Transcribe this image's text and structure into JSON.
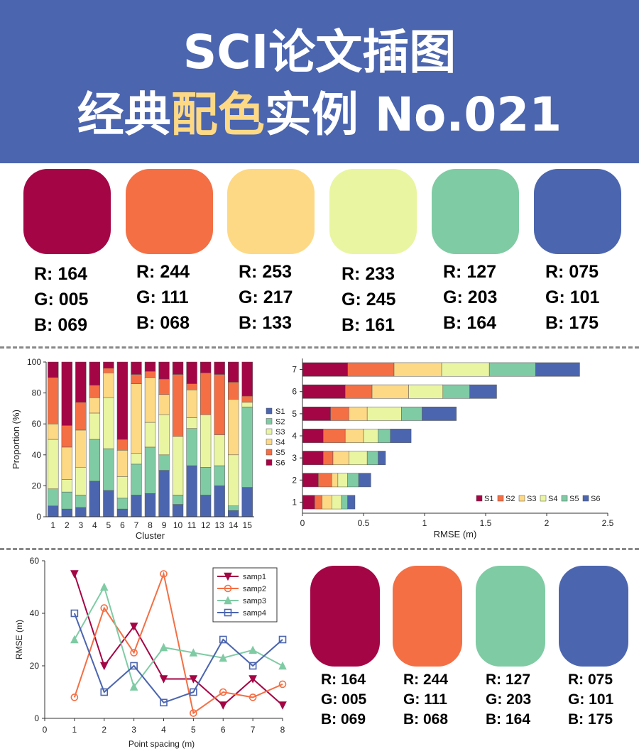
{
  "header": {
    "line1": "SCI论文插图",
    "line2_pre": "经典",
    "line2_highlight": "配色",
    "line2_post": "实例 No.021",
    "bg_color": "#4b65af",
    "highlight_color": "#fdd985"
  },
  "palette_top": [
    {
      "r": "R: 164",
      "g": "G: 005",
      "b": "B: 069",
      "hex": "#a40545"
    },
    {
      "r": "R: 244",
      "g": "G: 111",
      "b": "B: 068",
      "hex": "#f46f44"
    },
    {
      "r": "R: 253",
      "g": "G: 217",
      "b": "B: 133",
      "hex": "#fdd985"
    },
    {
      "r": "R: 233",
      "g": "G: 245",
      "b": "B: 161",
      "hex": "#e9f5a1"
    },
    {
      "r": "R: 127",
      "g": "G: 203",
      "b": "B: 164",
      "hex": "#7fcba4"
    },
    {
      "r": "R: 075",
      "g": "G: 101",
      "b": "B: 175",
      "hex": "#4b65af"
    }
  ],
  "palette_bottom": [
    {
      "r": "R: 164",
      "g": "G: 005",
      "b": "B: 069",
      "hex": "#a40545"
    },
    {
      "r": "R: 244",
      "g": "G: 111",
      "b": "B: 068",
      "hex": "#f46f44"
    },
    {
      "r": "R: 127",
      "g": "G: 203",
      "b": "B: 164",
      "hex": "#7fcba4"
    },
    {
      "r": "R: 075",
      "g": "G: 101",
      "b": "B: 175",
      "hex": "#4b65af"
    }
  ],
  "chart_data": [
    {
      "type": "bar",
      "stacked": true,
      "xlabel": "Cluster",
      "ylabel": "Proportion (%)",
      "ylim": [
        0,
        100
      ],
      "yticks": [
        0,
        20,
        40,
        60,
        80,
        100
      ],
      "categories": [
        "1",
        "2",
        "3",
        "4",
        "5",
        "6",
        "7",
        "8",
        "9",
        "10",
        "11",
        "12",
        "13",
        "14",
        "15"
      ],
      "legend_position": "right",
      "series": [
        {
          "name": "S1",
          "color": "#4b65af",
          "values": [
            7,
            5,
            6,
            23,
            17,
            5,
            14,
            15,
            30,
            8,
            33,
            14,
            20,
            4,
            19
          ]
        },
        {
          "name": "S2",
          "color": "#7fcba4",
          "values": [
            11,
            11,
            8,
            27,
            27,
            7,
            20,
            30,
            10,
            6,
            24,
            18,
            13,
            3,
            52
          ]
        },
        {
          "name": "S3",
          "color": "#e9f5a1",
          "values": [
            32,
            8,
            18,
            17,
            33,
            14,
            7,
            16,
            26,
            38,
            7,
            34,
            20,
            33,
            3
          ]
        },
        {
          "name": "S4",
          "color": "#fdd985",
          "values": [
            10,
            21,
            24,
            10,
            16,
            17,
            45,
            29,
            13,
            0,
            18,
            0,
            0,
            36,
            0
          ]
        },
        {
          "name": "S5",
          "color": "#f46f44",
          "values": [
            30,
            14,
            18,
            8,
            3,
            7,
            6,
            4,
            10,
            40,
            4,
            27,
            39,
            11,
            4
          ]
        },
        {
          "name": "S6",
          "color": "#a40545",
          "values": [
            10,
            41,
            26,
            15,
            4,
            50,
            8,
            6,
            11,
            8,
            14,
            7,
            8,
            13,
            22
          ]
        }
      ]
    },
    {
      "type": "bar",
      "orientation": "horizontal",
      "stacked": true,
      "xlabel": "RMSE (m)",
      "ylabel": "",
      "xlim": [
        0,
        2.5
      ],
      "xticks": [
        0,
        0.5,
        1,
        1.5,
        2,
        2.5
      ],
      "xtick_labels": [
        "0",
        "0.5",
        "1",
        "1.5",
        "2",
        "2.5"
      ],
      "categories": [
        "1",
        "2",
        "3",
        "4",
        "5",
        "6",
        "7"
      ],
      "legend_position": "bottom-right",
      "series": [
        {
          "name": "S1",
          "color": "#a40545",
          "values": [
            0.1,
            0.13,
            0.17,
            0.17,
            0.23,
            0.35,
            0.37
          ]
        },
        {
          "name": "S2",
          "color": "#f46f44",
          "values": [
            0.06,
            0.11,
            0.08,
            0.18,
            0.15,
            0.22,
            0.38
          ]
        },
        {
          "name": "S3",
          "color": "#fdd985",
          "values": [
            0.08,
            0.05,
            0.13,
            0.15,
            0.15,
            0.3,
            0.39
          ]
        },
        {
          "name": "S4",
          "color": "#e9f5a1",
          "values": [
            0.08,
            0.08,
            0.15,
            0.12,
            0.28,
            0.28,
            0.39
          ]
        },
        {
          "name": "S5",
          "color": "#7fcba4",
          "values": [
            0.05,
            0.09,
            0.09,
            0.1,
            0.17,
            0.22,
            0.38
          ]
        },
        {
          "name": "S6",
          "color": "#4b65af",
          "values": [
            0.06,
            0.1,
            0.06,
            0.17,
            0.28,
            0.22,
            0.36
          ]
        }
      ]
    },
    {
      "type": "line",
      "xlabel": "Point spacing (m)",
      "ylabel": "RMSE (m)",
      "xlim": [
        0,
        8
      ],
      "ylim": [
        0,
        60
      ],
      "xticks": [
        0,
        1,
        2,
        3,
        4,
        5,
        6,
        7,
        8
      ],
      "yticks": [
        0,
        20,
        40,
        60
      ],
      "x": [
        1,
        2,
        3,
        4,
        5,
        6,
        7,
        8
      ],
      "legend_position": "top-right",
      "series": [
        {
          "name": "samp1",
          "color": "#a40545",
          "marker": "triangle-down",
          "values": [
            55,
            20,
            35,
            15,
            15,
            5,
            15,
            5
          ]
        },
        {
          "name": "samp2",
          "color": "#f46f44",
          "marker": "circle",
          "values": [
            8,
            42,
            25,
            55,
            2,
            10,
            8,
            13
          ]
        },
        {
          "name": "samp3",
          "color": "#7fcba4",
          "marker": "triangle-up",
          "values": [
            30,
            50,
            12,
            27,
            25,
            23,
            26,
            20
          ]
        },
        {
          "name": "samp4",
          "color": "#4b65af",
          "marker": "square",
          "values": [
            40,
            10,
            20,
            6,
            10,
            30,
            20,
            30
          ]
        }
      ]
    }
  ]
}
